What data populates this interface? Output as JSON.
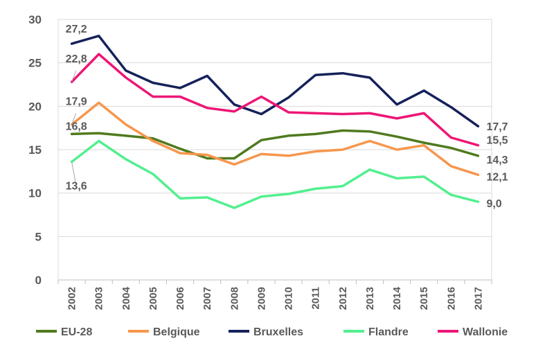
{
  "chart_data": {
    "type": "line",
    "title": "",
    "xlabel": "",
    "ylabel": "",
    "ylim": [
      0,
      30
    ],
    "yticks": [
      "0",
      "5",
      "10",
      "15",
      "20",
      "25",
      "30"
    ],
    "grid": "horizontal",
    "legend_position": "bottom",
    "categories": [
      "2002",
      "2003",
      "2004",
      "2005",
      "2006",
      "2007",
      "2008",
      "2009",
      "2010",
      "2011",
      "2012",
      "2013",
      "2014",
      "2015",
      "2016",
      "2017"
    ],
    "series": [
      {
        "name": "EU-28",
        "color": "#4f7a1e",
        "values": [
          16.8,
          16.9,
          16.6,
          16.3,
          15.1,
          14.0,
          14.0,
          16.1,
          16.6,
          16.8,
          17.2,
          17.1,
          16.5,
          15.8,
          15.2,
          14.3
        ],
        "start_label": "16,8",
        "end_label": "14,3"
      },
      {
        "name": "Belgique",
        "color": "#f7964c",
        "values": [
          17.9,
          20.4,
          17.9,
          16.0,
          14.6,
          14.4,
          13.3,
          14.5,
          14.3,
          14.8,
          15.0,
          16.0,
          15.0,
          15.5,
          13.1,
          12.1
        ],
        "start_label": "17,9",
        "end_label": "12,1"
      },
      {
        "name": "Bruxelles",
        "color": "#15215a",
        "values": [
          27.2,
          28.1,
          24.1,
          22.7,
          22.1,
          23.5,
          20.2,
          19.1,
          21.0,
          23.6,
          23.8,
          23.3,
          20.2,
          21.8,
          19.9,
          17.7
        ],
        "start_label": "27,2",
        "end_label": "17,7"
      },
      {
        "name": "Flandre",
        "color": "#52ef8f",
        "values": [
          13.6,
          16.0,
          13.9,
          12.2,
          9.4,
          9.5,
          8.3,
          9.6,
          9.9,
          10.5,
          10.8,
          12.7,
          11.7,
          11.9,
          9.8,
          9.0
        ],
        "start_label": "13,6",
        "end_label": "9,0"
      },
      {
        "name": "Wallonie",
        "color": "#ee1575",
        "values": [
          22.8,
          26.0,
          23.3,
          21.1,
          21.1,
          19.8,
          19.4,
          21.1,
          19.3,
          19.2,
          19.1,
          19.2,
          18.6,
          19.2,
          16.4,
          15.5
        ],
        "start_label": "22,8",
        "end_label": "15,5"
      }
    ]
  }
}
